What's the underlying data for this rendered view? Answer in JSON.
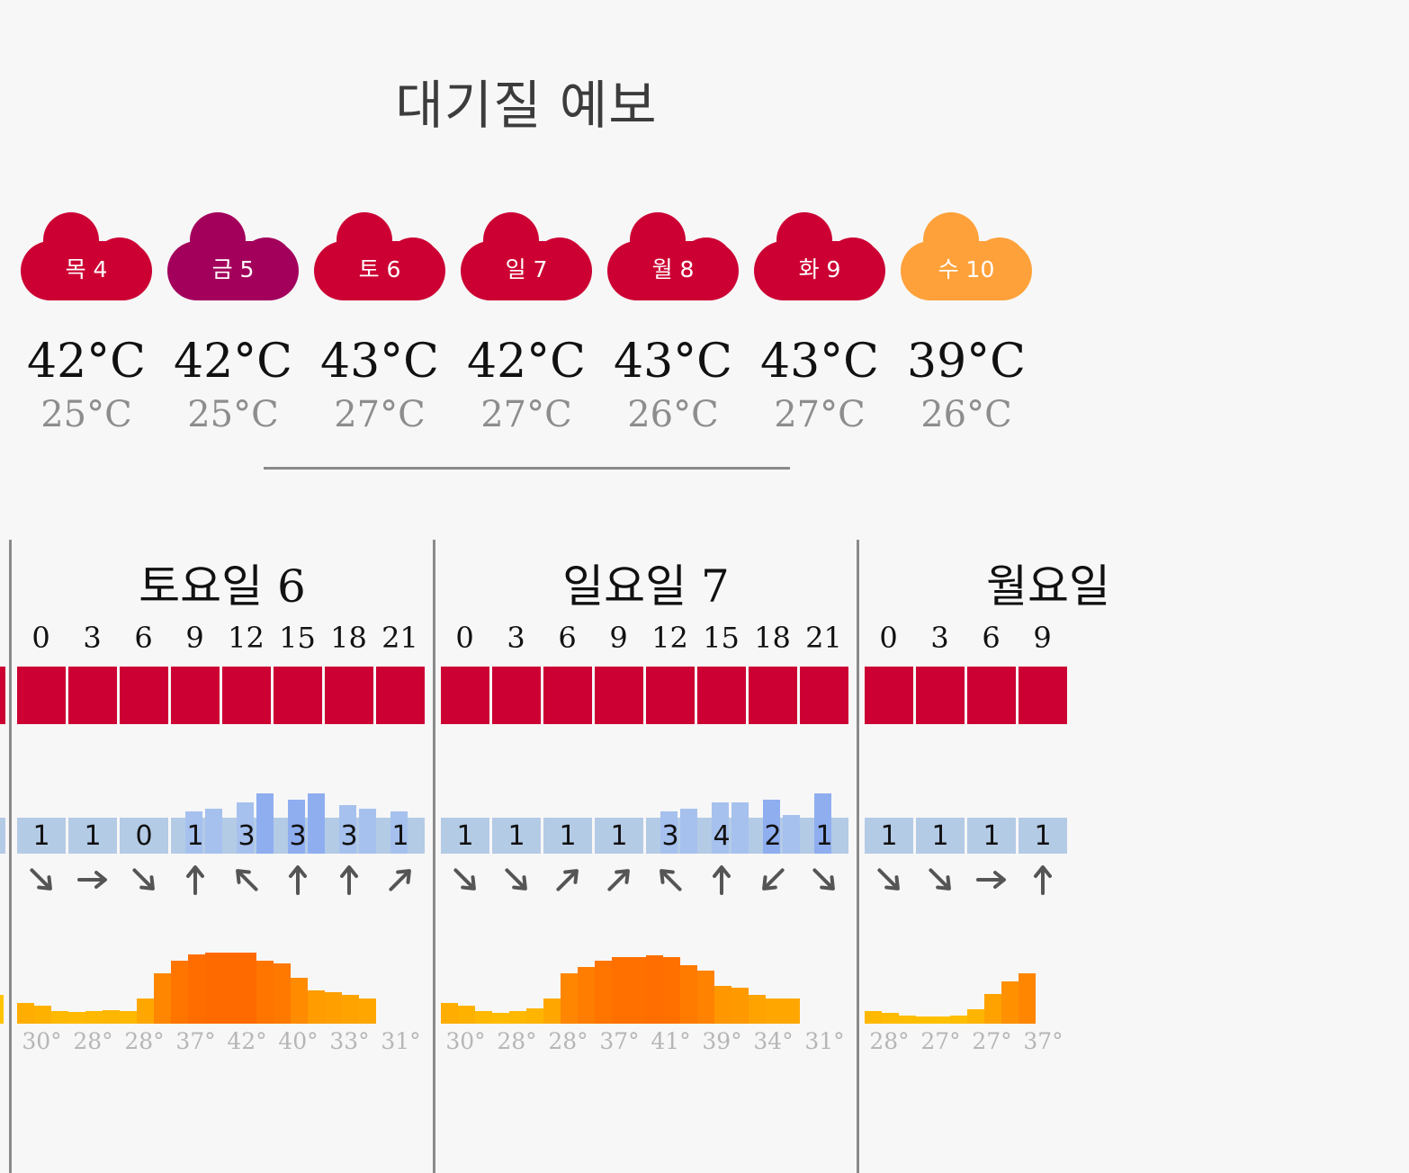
{
  "page": {
    "title": "대기질 예보"
  },
  "colors": {
    "aqi_red": "#cc0033",
    "aqi_purple": "#a3005c",
    "aqi_orange": "#ffa13a",
    "wind_base": "#b4cbe6",
    "wind_strong": "#8faef0",
    "temp_low": "#ffc300",
    "temp_high": "#ff6a00"
  },
  "days": [
    {
      "label": "목 4",
      "max": "42°C",
      "min": "25°C",
      "color": "#cc0033"
    },
    {
      "label": "금 5",
      "max": "42°C",
      "min": "25°C",
      "color": "#a3005c"
    },
    {
      "label": "토 6",
      "max": "43°C",
      "min": "27°C",
      "color": "#cc0033"
    },
    {
      "label": "일 7",
      "max": "42°C",
      "min": "27°C",
      "color": "#cc0033"
    },
    {
      "label": "월 8",
      "max": "43°C",
      "min": "26°C",
      "color": "#cc0033"
    },
    {
      "label": "화 9",
      "max": "43°C",
      "min": "27°C",
      "color": "#cc0033"
    },
    {
      "label": "수 10",
      "max": "39°C",
      "min": "26°C",
      "color": "#ffa13a"
    }
  ],
  "hourly": [
    {
      "title": "토요일 6",
      "hours": [
        "0",
        "3",
        "6",
        "9",
        "12",
        "15",
        "18",
        "21"
      ],
      "wind": [
        "1",
        "1",
        "0",
        "1",
        "3",
        "3",
        "3",
        "1"
      ],
      "wind_dir": [
        "arrow-down-right-icon",
        "arrow-right-icon",
        "arrow-down-right-icon",
        "arrow-up-icon",
        "arrow-up-left-icon",
        "arrow-up-icon",
        "arrow-up-icon",
        "arrow-up-right-icon"
      ],
      "wind_levels": [
        1,
        1,
        0.9,
        1,
        1,
        1,
        1.2,
        1.3,
        1.5,
        1.8,
        1.6,
        1.8,
        1.4,
        1.3,
        1.2,
        1
      ],
      "temp_samples": [
        30,
        29.3,
        28,
        27.8,
        28,
        28.3,
        28,
        31,
        37,
        40,
        41.5,
        42,
        42,
        42,
        40,
        39.5,
        36,
        33,
        32.5,
        31.8,
        31
      ],
      "temps": [
        "30°",
        "28°",
        "28°",
        "37°",
        "42°",
        "40°",
        "33°",
        "31°"
      ]
    },
    {
      "title": "일요일 7",
      "hours": [
        "0",
        "3",
        "6",
        "9",
        "12",
        "15",
        "18",
        "21"
      ],
      "wind": [
        "1",
        "1",
        "1",
        "1",
        "3",
        "4",
        "2",
        "1"
      ],
      "wind_dir": [
        "arrow-down-right-icon",
        "arrow-down-right-icon",
        "arrow-up-right-icon",
        "arrow-up-right-icon",
        "arrow-up-left-icon",
        "arrow-up-icon",
        "arrow-down-left-icon",
        "arrow-down-right-icon"
      ],
      "wind_levels": [
        1,
        1,
        1,
        1,
        1,
        1,
        1,
        1,
        1.2,
        1.3,
        1.5,
        1.5,
        1.6,
        1.1,
        1.8,
        1
      ],
      "temp_samples": [
        30,
        29.3,
        28,
        27.5,
        28,
        28.6,
        31,
        37,
        38.5,
        40,
        41,
        41,
        41.3,
        41,
        39,
        37.6,
        34,
        33.5,
        31.8,
        31,
        31
      ],
      "temps": [
        "30°",
        "28°",
        "28°",
        "37°",
        "41°",
        "39°",
        "34°",
        "31°"
      ]
    },
    {
      "title": "월요일",
      "hours": [
        "0",
        "3",
        "6",
        "9"
      ],
      "wind": [
        "1",
        "1",
        "1",
        "1"
      ],
      "wind_dir": [
        "arrow-down-right-icon",
        "arrow-down-right-icon",
        "arrow-right-icon",
        "arrow-up-icon"
      ],
      "wind_levels": [
        1,
        1,
        1,
        1,
        1,
        1,
        1,
        1
      ],
      "temp_samples": [
        28,
        27.5,
        27,
        26.7,
        26.5,
        27,
        28.5,
        32,
        35,
        37
      ],
      "temps": [
        "28°",
        "27°",
        "27°",
        "37°"
      ]
    }
  ]
}
